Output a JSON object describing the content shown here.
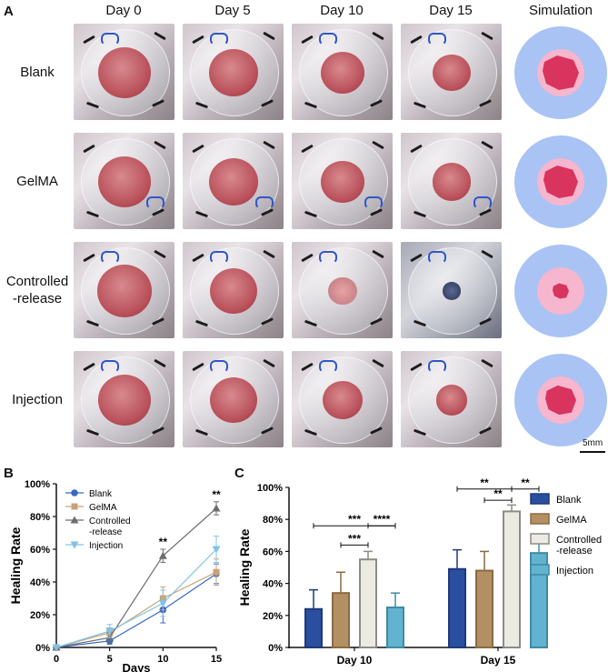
{
  "panel_a": {
    "letter": "A",
    "columns": [
      "Day 0",
      "Day 5",
      "Day 10",
      "Day 15",
      "Simulation"
    ],
    "rows": [
      {
        "label_lines": [
          "Blank"
        ],
        "wound_scale": [
          1.0,
          0.92,
          0.84,
          0.72
        ],
        "sim_scale": 1.0
      },
      {
        "label_lines": [
          "GelMA"
        ],
        "wound_scale": [
          1.0,
          0.93,
          0.82,
          0.74
        ],
        "sim_scale": 0.95
      },
      {
        "label_lines": [
          "Controlled",
          "-release"
        ],
        "wound_scale": [
          1.05,
          0.9,
          0.55,
          0.35
        ],
        "sim_scale": 0.45
      },
      {
        "label_lines": [
          "Injection"
        ],
        "wound_scale": [
          1.0,
          0.9,
          0.75,
          0.6
        ],
        "sim_scale": 0.85
      }
    ],
    "scale_bar_label": "5mm",
    "colors": {
      "sim_outer": "#a9c3f5",
      "sim_inner": "#f6b6cd",
      "sim_wound": "#d9345e"
    }
  },
  "panel_b": {
    "letter": "B",
    "chart_data": {
      "type": "line",
      "xlabel": "Days",
      "ylabel": "Healing Rate",
      "x": [
        0,
        5,
        10,
        15
      ],
      "xlim": [
        0,
        15
      ],
      "ylim": [
        0,
        100
      ],
      "yticks": [
        "0%",
        "20%",
        "40%",
        "60%",
        "80%",
        "100%"
      ],
      "xticks": [
        "0",
        "5",
        "10",
        "15"
      ],
      "legend_position": "top-left",
      "series": [
        {
          "name": "Blank",
          "values": [
            0,
            4,
            23,
            45
          ],
          "errors": [
            0,
            2,
            8,
            6
          ],
          "color": "#3867c6",
          "marker": "circle"
        },
        {
          "name": "GelMA",
          "values": [
            0,
            9,
            30,
            46
          ],
          "errors": [
            0,
            3,
            7,
            8
          ],
          "color": "#c9a27a",
          "marker": "square"
        },
        {
          "name": "Controlled-release",
          "legend_lines": [
            "Controlled",
            "-release"
          ],
          "values": [
            0,
            6,
            56,
            85
          ],
          "errors": [
            0,
            3,
            4,
            4
          ],
          "color": "#6e6e6e",
          "marker": "triangle"
        },
        {
          "name": "Injection",
          "values": [
            0,
            10,
            27,
            60
          ],
          "errors": [
            0,
            4,
            8,
            8
          ],
          "color": "#7fc4e6",
          "marker": "triangle-down"
        }
      ],
      "annotations": [
        {
          "x": 10,
          "text": "**"
        },
        {
          "x": 15,
          "text": "**"
        }
      ]
    }
  },
  "panel_c": {
    "letter": "C",
    "chart_data": {
      "type": "bar",
      "ylabel": "Healing Rate",
      "categories": [
        "Day 10",
        "Day 15"
      ],
      "ylim": [
        0,
        100
      ],
      "yticks": [
        "0%",
        "20%",
        "40%",
        "60%",
        "80%",
        "100%"
      ],
      "legend_position": "right",
      "series": [
        {
          "name": "Blank",
          "values": [
            24,
            49
          ],
          "errors": [
            12,
            12
          ],
          "fill": "#2b4f9f",
          "edge": "#1e3a78"
        },
        {
          "name": "GelMA",
          "values": [
            34,
            48
          ],
          "errors": [
            13,
            12
          ],
          "fill": "#b39064",
          "edge": "#8a6a42"
        },
        {
          "name": "Controlled-release",
          "legend_lines": [
            "Controlled",
            "-release"
          ],
          "values": [
            55,
            85
          ],
          "errors": [
            5,
            4
          ],
          "fill": "#ecebe3",
          "edge": "#8c8c86"
        },
        {
          "name": "Injection",
          "values": [
            25,
            59
          ],
          "errors": [
            9,
            9
          ],
          "fill": "#62b3cf",
          "edge": "#3f8aa6"
        }
      ],
      "significance": [
        {
          "group": 0,
          "from": 0,
          "to": 3,
          "text": "***",
          "level": 0
        },
        {
          "group": 0,
          "from": 2,
          "to": 3,
          "text": "****",
          "level": 0
        },
        {
          "group": 0,
          "from": 1,
          "to": 2,
          "text": "***",
          "level": 1
        },
        {
          "group": 1,
          "from": 0,
          "to": 2,
          "text": "**",
          "level": 0
        },
        {
          "group": 1,
          "from": 2,
          "to": 3,
          "text": "**",
          "level": 0
        },
        {
          "group": 1,
          "from": 1,
          "to": 2,
          "text": "**",
          "level": 1
        }
      ]
    }
  }
}
